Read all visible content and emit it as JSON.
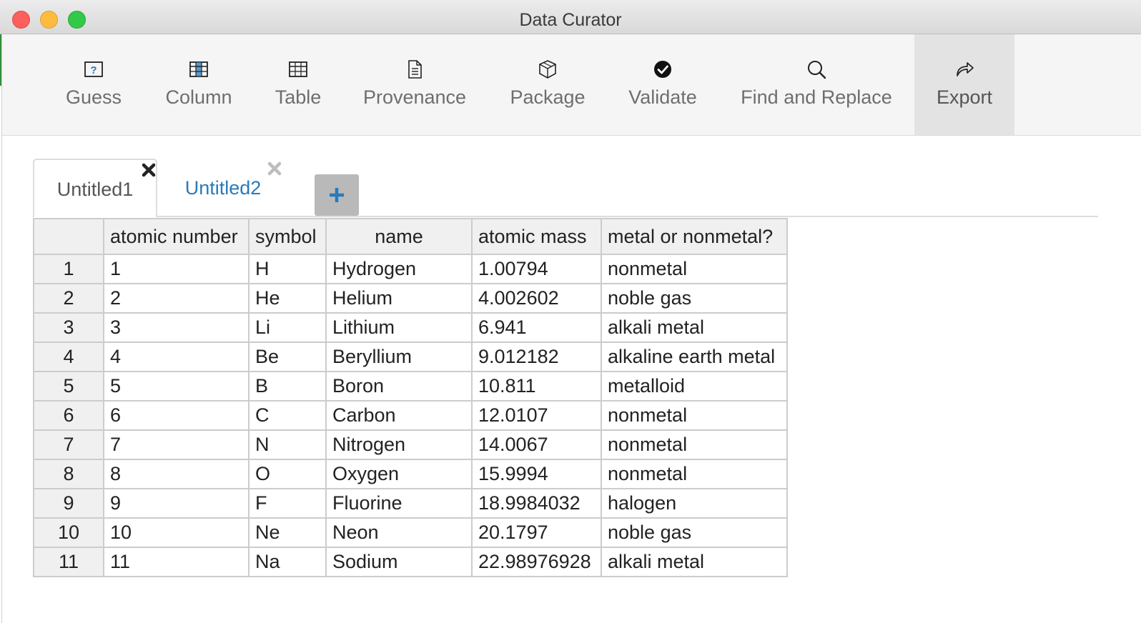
{
  "window": {
    "title": "Data Curator"
  },
  "toolbar": {
    "items": [
      {
        "label": "Guess",
        "icon": "guess-icon"
      },
      {
        "label": "Column",
        "icon": "column-icon"
      },
      {
        "label": "Table",
        "icon": "table-icon"
      },
      {
        "label": "Provenance",
        "icon": "provenance-icon"
      },
      {
        "label": "Package",
        "icon": "package-icon"
      },
      {
        "label": "Validate",
        "icon": "validate-check-icon"
      },
      {
        "label": "Find and Replace",
        "icon": "search-icon"
      },
      {
        "label": "Export",
        "icon": "export-share-icon",
        "active": true
      }
    ]
  },
  "tabs": [
    {
      "label": "Untitled1",
      "active": true
    },
    {
      "label": "Untitled2",
      "active": false
    }
  ],
  "add_tab": {
    "icon": "plus-icon"
  },
  "table": {
    "columns": [
      "atomic number",
      "symbol",
      "name",
      "atomic mass",
      "metal or nonmetal?"
    ],
    "rows": [
      {
        "n": "1",
        "cells": [
          "1",
          "H",
          "Hydrogen",
          "1.00794",
          "nonmetal"
        ]
      },
      {
        "n": "2",
        "cells": [
          "2",
          "He",
          "Helium",
          "4.002602",
          "noble gas"
        ]
      },
      {
        "n": "3",
        "cells": [
          "3",
          "Li",
          "Lithium",
          "6.941",
          "alkali metal"
        ]
      },
      {
        "n": "4",
        "cells": [
          "4",
          "Be",
          "Beryllium",
          "9.012182",
          "alkaline earth metal"
        ]
      },
      {
        "n": "5",
        "cells": [
          "5",
          "B",
          "Boron",
          "10.811",
          "metalloid"
        ]
      },
      {
        "n": "6",
        "cells": [
          "6",
          "C",
          "Carbon",
          "12.0107",
          "nonmetal"
        ]
      },
      {
        "n": "7",
        "cells": [
          "7",
          "N",
          "Nitrogen",
          "14.0067",
          "nonmetal"
        ]
      },
      {
        "n": "8",
        "cells": [
          "8",
          "O",
          "Oxygen",
          "15.9994",
          "nonmetal"
        ]
      },
      {
        "n": "9",
        "cells": [
          "9",
          "F",
          "Fluorine",
          "18.9984032",
          "halogen"
        ]
      },
      {
        "n": "10",
        "cells": [
          "10",
          "Ne",
          "Neon",
          "20.1797",
          "noble gas"
        ]
      },
      {
        "n": "11",
        "cells": [
          "11",
          "Na",
          "Sodium",
          "22.98976928",
          "alkali metal"
        ]
      }
    ]
  },
  "colors": {
    "tab_link": "#2a7ab8",
    "add_button_bg": "#b9b9b9",
    "add_button_plus": "#2a7ab8",
    "close_red": "#fc605c",
    "minimize_yellow": "#fdbc40",
    "zoom_green": "#34c84a"
  }
}
